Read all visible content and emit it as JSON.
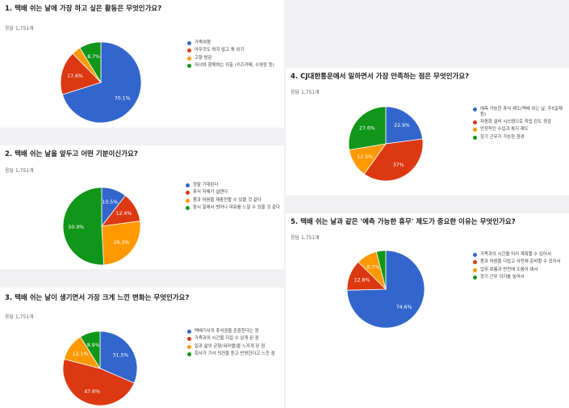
{
  "colors": {
    "blue": "#3366cc",
    "red": "#dc3912",
    "orange": "#ff9900",
    "green": "#109618"
  },
  "chart_data": [
    {
      "type": "pie",
      "title": "1. 택배 쉬는 날에 가장 하고 싶은 활동은 무엇인가요?",
      "responses": "응답 1,751개",
      "categories": [
        "가족여행",
        "아무것도 하지 않고 푹 쉬기",
        "고향 방문",
        "자녀와 함께하는 외출 (키즈카페, 수영장 등)"
      ],
      "values": [
        70.1,
        17.6,
        3.6,
        8.7
      ],
      "labels": [
        "70.1%",
        "17.6%",
        "",
        "8.7%"
      ]
    },
    {
      "type": "pie",
      "title": "2. 택배 쉬는 날을 앞두고 어떤 기분이신가요?",
      "responses": "응답 1,751개",
      "categories": [
        "정말 기대된다",
        "휴식 자체가 설렌다",
        "몸과 마음을 재충전할 수 있을 것 같다",
        "잠시 일에서 벗어나 여유를 느낄 수 있을 것 같다"
      ],
      "values": [
        10.5,
        12.4,
        26.3,
        50.9
      ],
      "labels": [
        "10.5%",
        "12.4%",
        "26.3%",
        "50.9%"
      ]
    },
    {
      "type": "pie",
      "title": "3. 택배 쉬는 날이 생기면서 가장 크게 느낀 변화는 무엇인가요?",
      "responses": "응답 1,751개",
      "categories": [
        "택배기사의 휴식권을 존중한다는 점",
        "가족과의 시간을 지킬 수 있게 된 점",
        "일과 삶의 균형(워라밸)을 느끼게 된 점",
        "회사가 기사 의견을 듣고 반영한다고 느낀 점"
      ],
      "values": [
        31.5,
        47.6,
        12.1,
        8.9
      ],
      "labels": [
        "31.5%",
        "47.6%",
        "12.1%",
        "8.9%"
      ]
    },
    {
      "type": "pie",
      "title": "4. CJ대한통운에서 일하면서 가장 만족하는 점은 무엇인가요?",
      "responses": "응답 1,751개",
      "categories": [
        "예측 가능한 휴식 제도(택배 쉬는 날, 주5일제 등)",
        "자동화 설비 시스템으로 작업 강도 경감",
        "안정적인 수입과 복지 제도",
        "장기 근무가 가능한 환경"
      ],
      "values": [
        22.9,
        37,
        12.5,
        27.6
      ],
      "labels": [
        "22.9%",
        "37%",
        "12.5%",
        "27.6%"
      ]
    },
    {
      "type": "pie",
      "title": "5. 택배 쉬는 날과 같은 '예측 가능한 휴무' 제도가 중요한 이유는 무엇인가요?",
      "responses": "응답 1,751개",
      "categories": [
        "가족과의 시간을 미리 계획할 수 있어서",
        "몸과 마음을 다잡고 사전에 준비할 수 있어서",
        "업무 흐름과 반전에 도움이 돼서",
        "장기 근무 의지를 높여서"
      ],
      "values": [
        74.6,
        12.8,
        8.7,
        3.9
      ],
      "labels": [
        "74.6%",
        "12.8%",
        "8.7%",
        ""
      ]
    }
  ]
}
